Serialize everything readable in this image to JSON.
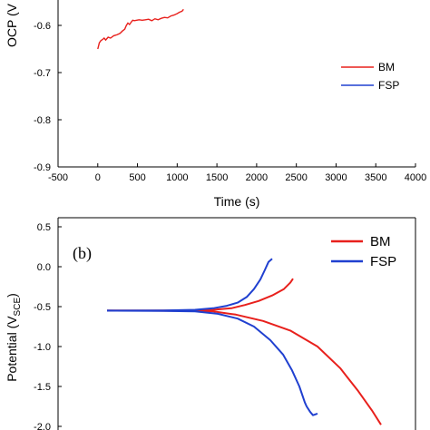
{
  "chart_data": [
    {
      "type": "line",
      "panel_label": "",
      "title": "",
      "xlabel": "Time (s)",
      "ylabel": "OCP (V",
      "xlim": [
        -500,
        4000
      ],
      "ylim": [
        -0.9,
        -0.54
      ],
      "x_ticks": [
        "-500",
        "0",
        "500",
        "1000",
        "1500",
        "2000",
        "2500",
        "3000",
        "3500",
        "4000"
      ],
      "y_ticks": [
        "-0.6",
        "-0.7",
        "-0.8",
        "-0.9"
      ],
      "legend_position": "right",
      "colors": {
        "BM": "#e8201c",
        "FSP": "#2040d0"
      },
      "series": [
        {
          "name": "BM",
          "x": [
            0,
            20,
            40,
            60,
            80,
            100,
            130,
            160,
            200,
            240,
            280,
            310,
            340,
            360,
            380,
            400,
            420,
            440,
            460,
            490,
            520,
            560,
            600,
            640,
            680,
            720,
            760,
            800,
            840,
            880,
            920,
            960,
            1000,
            1030,
            1060,
            1080
          ],
          "y": [
            -0.65,
            -0.637,
            -0.632,
            -0.63,
            -0.627,
            -0.631,
            -0.625,
            -0.627,
            -0.622,
            -0.62,
            -0.617,
            -0.612,
            -0.608,
            -0.6,
            -0.595,
            -0.598,
            -0.593,
            -0.589,
            -0.59,
            -0.589,
            -0.588,
            -0.589,
            -0.588,
            -0.587,
            -0.59,
            -0.586,
            -0.588,
            -0.585,
            -0.583,
            -0.584,
            -0.58,
            -0.578,
            -0.575,
            -0.572,
            -0.57,
            -0.566
          ]
        },
        {
          "name": "FSP",
          "x": [],
          "y": []
        }
      ]
    },
    {
      "type": "line",
      "panel_label": "(b)",
      "title": "",
      "xlabel": "",
      "ylabel": "Potential (V",
      "ylabel_subscript": "SCE",
      "ylabel_close": ")",
      "ylim": [
        -2.0,
        0.5
      ],
      "y_ticks": [
        "0.5",
        "0.0",
        "-0.5",
        "-1.0",
        "-1.5",
        "-2.0"
      ],
      "legend_position": "top-right",
      "colors": {
        "BM": "#e8201c",
        "FSP": "#2040d0"
      },
      "series": [
        {
          "name": "BM",
          "x": [
            118,
            200,
            235,
            255,
            270,
            285,
            300,
            313,
            320,
            323
          ],
          "y": [
            -0.55,
            -0.548,
            -0.54,
            -0.52,
            -0.48,
            -0.43,
            -0.36,
            -0.28,
            -0.2,
            -0.15
          ]
        },
        {
          "name": "BM",
          "x": [
            118,
            200,
            235,
            260,
            290,
            320,
            350,
            375,
            395,
            410,
            420
          ],
          "y": [
            -0.55,
            -0.552,
            -0.56,
            -0.6,
            -0.68,
            -0.8,
            -1.0,
            -1.27,
            -1.56,
            -1.8,
            -1.98
          ]
        },
        {
          "name": "FSP",
          "x": [
            118,
            180,
            215,
            235,
            250,
            262,
            272,
            280,
            287,
            292,
            296,
            300
          ],
          "y": [
            -0.55,
            -0.548,
            -0.54,
            -0.52,
            -0.49,
            -0.45,
            -0.38,
            -0.28,
            -0.16,
            -0.04,
            0.06,
            0.1
          ]
        },
        {
          "name": "FSP",
          "x": [
            118,
            180,
            215,
            240,
            262,
            280,
            298,
            312,
            322,
            330,
            336,
            338,
            342,
            345,
            350
          ],
          "y": [
            -0.55,
            -0.553,
            -0.56,
            -0.59,
            -0.65,
            -0.75,
            -0.92,
            -1.1,
            -1.3,
            -1.5,
            -1.7,
            -1.75,
            -1.82,
            -1.86,
            -1.84
          ]
        }
      ]
    }
  ]
}
